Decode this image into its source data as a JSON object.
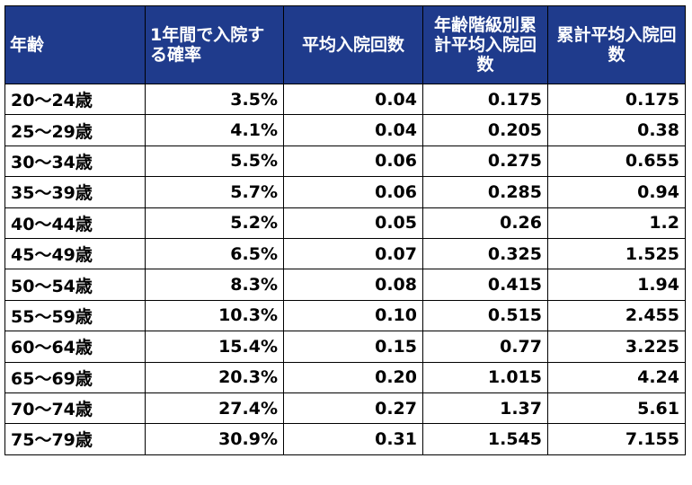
{
  "table": {
    "headers": [
      "年齢",
      "1年間で入院する確率",
      "平均入院回数",
      "年齢階級別累計平均入院回数",
      "累計平均入院回数"
    ],
    "rows": [
      [
        "20〜24歳",
        "3.5%",
        "0.04",
        "0.175",
        "0.175"
      ],
      [
        "25〜29歳",
        "4.1%",
        "0.04",
        "0.205",
        "0.38"
      ],
      [
        "30〜34歳",
        "5.5%",
        "0.06",
        "0.275",
        "0.655"
      ],
      [
        "35〜39歳",
        "5.7%",
        "0.06",
        "0.285",
        "0.94"
      ],
      [
        "40〜44歳",
        "5.2%",
        "0.05",
        "0.26",
        "1.2"
      ],
      [
        "45〜49歳",
        "6.5%",
        "0.07",
        "0.325",
        "1.525"
      ],
      [
        "50〜54歳",
        "8.3%",
        "0.08",
        "0.415",
        "1.94"
      ],
      [
        "55〜59歳",
        "10.3%",
        "0.10",
        "0.515",
        "2.455"
      ],
      [
        "60〜64歳",
        "15.4%",
        "0.15",
        "0.77",
        "3.225"
      ],
      [
        "65〜69歳",
        "20.3%",
        "0.20",
        "1.015",
        "4.24"
      ],
      [
        "70〜74歳",
        "27.4%",
        "0.27",
        "1.37",
        "5.61"
      ],
      [
        "75〜79歳",
        "30.9%",
        "0.31",
        "1.545",
        "7.155"
      ]
    ]
  },
  "colors": {
    "header_bg": "#1f3b8c",
    "header_text": "#ffffff",
    "border": "#000000"
  }
}
